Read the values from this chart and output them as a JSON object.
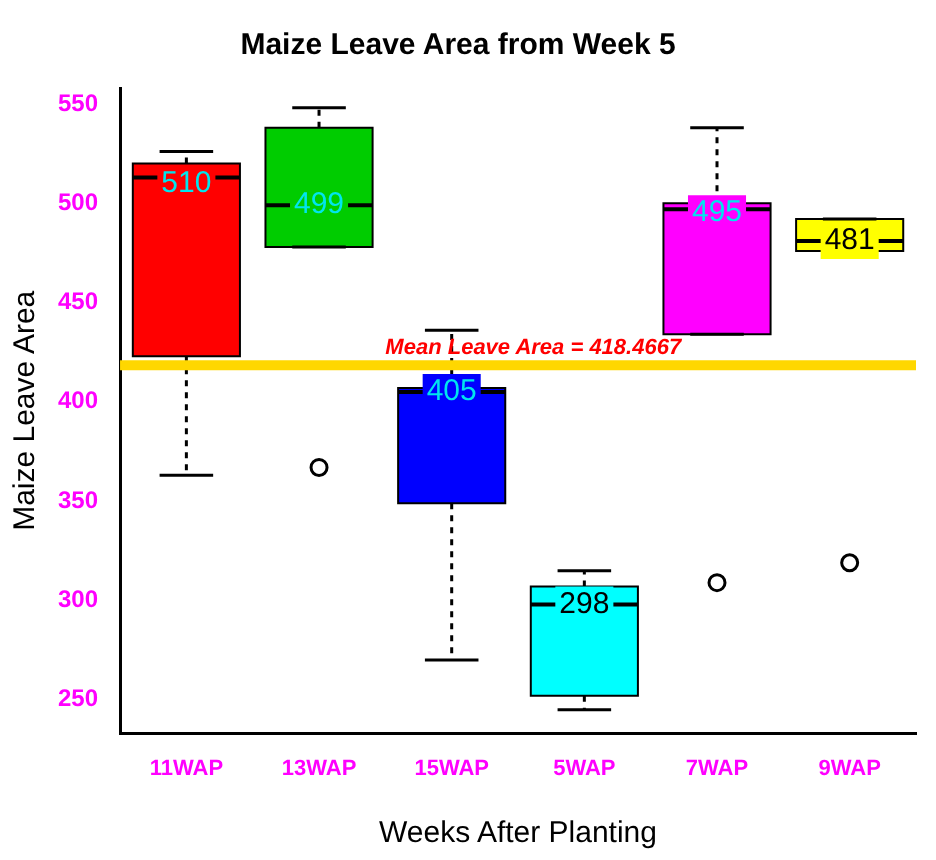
{
  "chart_data": {
    "type": "box",
    "title": "Maize Leave Area from Week 5",
    "xlabel": "Weeks After Planting",
    "ylabel": "Maize Leave Area",
    "categories": [
      "11WAP",
      "13WAP",
      "15WAP",
      "5WAP",
      "7WAP",
      "9WAP"
    ],
    "colors": [
      "#ff0000",
      "#00cc00",
      "#0000ff",
      "#00ffff",
      "#ff00ff",
      "#ffff00"
    ],
    "boxes": [
      {
        "low": 363,
        "q1": 423,
        "median": 513,
        "q3": 520,
        "high": 526
      },
      {
        "low": 478,
        "q1": 478,
        "median": 499,
        "q3": 538,
        "high": 548,
        "outliers": [
          367
        ]
      },
      {
        "low": 270,
        "q1": 349,
        "median": 405,
        "q3": 407,
        "high": 436
      },
      {
        "low": 245,
        "q1": 252,
        "median": 298,
        "q3": 307,
        "high": 315
      },
      {
        "low": 434,
        "q1": 434,
        "median": 497,
        "q3": 500,
        "high": 538,
        "outliers": [
          309
        ]
      },
      {
        "low": 476,
        "q1": 476,
        "median": 481,
        "q3": 492,
        "high": 492,
        "outliers": [
          319
        ]
      }
    ],
    "ylim": [
      233,
      558
    ],
    "yticks": [
      250,
      300,
      350,
      400,
      450,
      500,
      550
    ],
    "grid": false,
    "legend": false,
    "ref_lines": [
      {
        "axis": "y",
        "value": 418.4667,
        "label": "Mean Leave Area = 418.4667",
        "color": "#ffd700"
      }
    ],
    "annotations": [
      {
        "text": "510",
        "x": "11WAP",
        "y": 510
      },
      {
        "text": "499",
        "x": "13WAP",
        "y": 499
      },
      {
        "text": "405",
        "x": "15WAP",
        "y": 405
      },
      {
        "text": "298",
        "x": "5WAP",
        "y": 298
      },
      {
        "text": "495",
        "x": "7WAP",
        "y": 495
      },
      {
        "text": "481",
        "x": "9WAP",
        "y": 481
      }
    ]
  }
}
